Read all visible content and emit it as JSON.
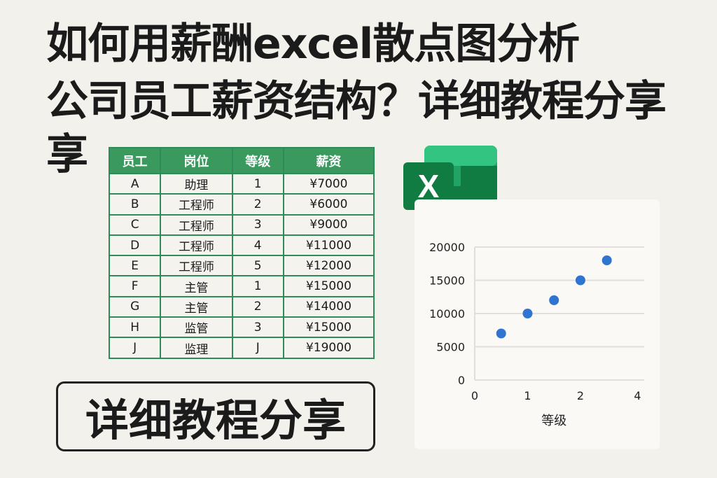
{
  "title": {
    "line1": "如何用薪酬excel散点图分析",
    "line2": "公司员工薪资结构？详细教程分享",
    "line3": "享"
  },
  "table": {
    "headers": [
      "员工",
      "岗位",
      "等级",
      "薪资"
    ],
    "rows": [
      [
        "A",
        "助理",
        "1",
        "¥7000"
      ],
      [
        "B",
        "工程师",
        "2",
        "¥6000"
      ],
      [
        "C",
        "工程师",
        "3",
        "¥9000"
      ],
      [
        "D",
        "工程师",
        "4",
        "¥11000"
      ],
      [
        "E",
        "工程师",
        "5",
        "¥12000"
      ],
      [
        "F",
        "主管",
        "1",
        "¥15000"
      ],
      [
        "G",
        "主管",
        "2",
        "¥14000"
      ],
      [
        "H",
        "监管",
        "3",
        "¥15000"
      ],
      [
        "J",
        "监理",
        "J",
        "¥19000"
      ]
    ]
  },
  "logo": {
    "letter": "X",
    "colors": [
      "#185c37",
      "#21a366",
      "#33c481",
      "#107c41"
    ]
  },
  "button": {
    "label": "详细教程分享"
  },
  "chart_data": {
    "type": "scatter",
    "xlabel": "等级",
    "ylabel": "",
    "xticks": [
      "0",
      "1",
      "2",
      "4"
    ],
    "yticks": [
      0,
      5000,
      10000,
      15000,
      20000
    ],
    "ylim": [
      0,
      20000
    ],
    "xlim": [
      0,
      3.1
    ],
    "grid": true,
    "marker_color": "#2f74d0",
    "points": [
      {
        "x": 0.5,
        "y": 7000
      },
      {
        "x": 1,
        "y": 10000
      },
      {
        "x": 1.5,
        "y": 12000
      },
      {
        "x": 2,
        "y": 15000
      },
      {
        "x": 2.5,
        "y": 18000
      }
    ]
  }
}
